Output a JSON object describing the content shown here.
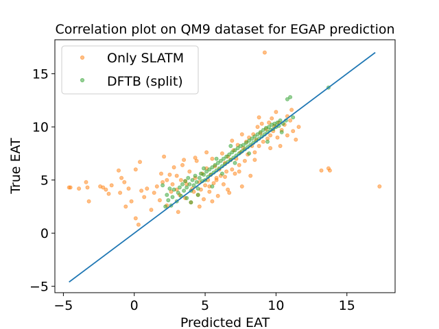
{
  "chart_data": {
    "type": "scatter",
    "title": "Correlation plot on QM9 dataset for EGAP prediction",
    "xlabel": "Predicted EAT",
    "ylabel": "True EAT",
    "xlim": [
      -5.6,
      18.4
    ],
    "ylim": [
      -5.6,
      18.2
    ],
    "xticks": [
      -5,
      0,
      5,
      10,
      15
    ],
    "yticks": [
      -5,
      0,
      5,
      10,
      15
    ],
    "xtick_labels": [
      "−5",
      "0",
      "5",
      "10",
      "15"
    ],
    "ytick_labels": [
      "−5",
      "0",
      "5",
      "10",
      "15"
    ],
    "grid": false,
    "legend_position": "top-left",
    "reference_line": {
      "x": [
        -4.6,
        17.0
      ],
      "y": [
        -4.6,
        17.0
      ],
      "color": "#1f77b4"
    },
    "series": [
      {
        "name": "Only SLATM",
        "color": "#ff7f0e",
        "points": [
          [
            -4.6,
            4.3
          ],
          [
            -4.5,
            4.3
          ],
          [
            -3.9,
            4.2
          ],
          [
            -3.4,
            4.8
          ],
          [
            -3.3,
            4.3
          ],
          [
            -3.2,
            3.0
          ],
          [
            -2.4,
            4.4
          ],
          [
            -2.2,
            4.3
          ],
          [
            -2.0,
            4.1
          ],
          [
            -1.8,
            3.7
          ],
          [
            -1.6,
            4.5
          ],
          [
            -1.1,
            5.9
          ],
          [
            -1.0,
            3.8
          ],
          [
            -0.7,
            4.8
          ],
          [
            -0.6,
            2.5
          ],
          [
            -0.4,
            4.2
          ],
          [
            -0.2,
            3.0
          ],
          [
            0.1,
            1.4
          ],
          [
            0.3,
            0.8
          ],
          [
            0.4,
            6.7
          ],
          [
            0.5,
            4.0
          ],
          [
            0.7,
            3.4
          ],
          [
            0.9,
            4.2
          ],
          [
            1.2,
            2.2
          ],
          [
            1.4,
            3.8
          ],
          [
            1.6,
            4.4
          ],
          [
            1.8,
            3.1
          ],
          [
            2.0,
            4.8
          ],
          [
            2.1,
            7.2
          ],
          [
            2.3,
            2.6
          ],
          [
            2.5,
            5.5
          ],
          [
            2.6,
            3.9
          ],
          [
            2.8,
            6.2
          ],
          [
            3.0,
            4.1
          ],
          [
            3.1,
            2.0
          ],
          [
            3.3,
            5.0
          ],
          [
            3.4,
            6.4
          ],
          [
            3.6,
            3.3
          ],
          [
            3.7,
            4.6
          ],
          [
            3.9,
            5.8
          ],
          [
            4.0,
            2.9
          ],
          [
            4.1,
            4.2
          ],
          [
            4.3,
            5.2
          ],
          [
            4.4,
            6.8
          ],
          [
            4.5,
            3.6
          ],
          [
            4.6,
            4.8
          ],
          [
            4.8,
            5.6
          ],
          [
            4.9,
            3.2
          ],
          [
            5.0,
            4.5
          ],
          [
            5.1,
            6.1
          ],
          [
            5.2,
            5.0
          ],
          [
            5.3,
            3.9
          ],
          [
            5.4,
            5.5
          ],
          [
            5.5,
            7.0
          ],
          [
            5.6,
            4.7
          ],
          [
            5.7,
            6.3
          ],
          [
            5.8,
            5.2
          ],
          [
            5.9,
            3.5
          ],
          [
            6.0,
            6.0
          ],
          [
            6.1,
            5.4
          ],
          [
            6.2,
            7.5
          ],
          [
            6.3,
            4.6
          ],
          [
            6.4,
            6.6
          ],
          [
            6.5,
            5.8
          ],
          [
            6.6,
            7.2
          ],
          [
            6.7,
            3.8
          ],
          [
            6.8,
            6.9
          ],
          [
            6.9,
            6.0
          ],
          [
            7.0,
            7.8
          ],
          [
            7.1,
            5.6
          ],
          [
            7.2,
            7.0
          ],
          [
            7.3,
            8.3
          ],
          [
            7.4,
            6.4
          ],
          [
            7.5,
            7.6
          ],
          [
            7.6,
            4.4
          ],
          [
            7.7,
            8.0
          ],
          [
            7.8,
            6.8
          ],
          [
            7.9,
            8.6
          ],
          [
            8.0,
            7.4
          ],
          [
            8.1,
            9.0
          ],
          [
            8.2,
            5.4
          ],
          [
            8.3,
            8.2
          ],
          [
            8.4,
            9.3
          ],
          [
            8.5,
            7.6
          ],
          [
            8.6,
            8.8
          ],
          [
            8.7,
            10.0
          ],
          [
            8.8,
            8.2
          ],
          [
            8.9,
            9.4
          ],
          [
            9.0,
            10.3
          ],
          [
            9.1,
            8.6
          ],
          [
            9.2,
            17.0
          ],
          [
            9.3,
            9.8
          ],
          [
            9.4,
            8.9
          ],
          [
            9.5,
            10.4
          ],
          [
            9.6,
            9.2
          ],
          [
            9.7,
            10.8
          ],
          [
            9.8,
            9.6
          ],
          [
            9.9,
            10.1
          ],
          [
            10.0,
            11.4
          ],
          [
            10.1,
            9.0
          ],
          [
            10.2,
            10.4
          ],
          [
            10.3,
            8.2
          ],
          [
            10.4,
            9.7
          ],
          [
            10.6,
            10.2
          ],
          [
            10.8,
            9.2
          ],
          [
            11.0,
            10.6
          ],
          [
            11.2,
            9.6
          ],
          [
            11.4,
            8.8
          ],
          [
            11.6,
            10.0
          ],
          [
            13.2,
            5.9
          ],
          [
            13.7,
            6.1
          ],
          [
            13.8,
            5.9
          ],
          [
            17.3,
            4.4
          ],
          [
            3.2,
            3.6
          ],
          [
            3.6,
            4.9
          ],
          [
            4.2,
            3.9
          ],
          [
            4.7,
            4.1
          ],
          [
            5.3,
            4.4
          ],
          [
            5.8,
            5.0
          ],
          [
            6.4,
            5.3
          ],
          [
            2.7,
            4.6
          ],
          [
            3.0,
            5.4
          ],
          [
            4.6,
            2.5
          ],
          [
            5.5,
            3.0
          ],
          [
            6.6,
            4.1
          ],
          [
            7.4,
            5.8
          ],
          [
            8.5,
            6.9
          ],
          [
            9.6,
            8.0
          ],
          [
            2.3,
            5.0
          ],
          [
            1.9,
            5.6
          ],
          [
            6.9,
            8.7
          ],
          [
            7.6,
            9.3
          ],
          [
            8.8,
            10.9
          ],
          [
            5.1,
            7.6
          ],
          [
            4.3,
            7.1
          ],
          [
            3.5,
            6.9
          ],
          [
            10.8,
            11.0
          ],
          [
            11.1,
            11.6
          ],
          [
            0.1,
            6.0
          ],
          [
            -0.9,
            5.2
          ]
        ]
      },
      {
        "name": "DFTB (split)",
        "color": "#2ca02c",
        "points": [
          [
            2.2,
            2.5
          ],
          [
            2.4,
            3.1
          ],
          [
            2.6,
            2.6
          ],
          [
            2.7,
            3.4
          ],
          [
            2.8,
            4.1
          ],
          [
            3.0,
            3.0
          ],
          [
            3.1,
            3.8
          ],
          [
            3.2,
            4.3
          ],
          [
            3.3,
            3.5
          ],
          [
            3.4,
            4.6
          ],
          [
            3.5,
            4.0
          ],
          [
            3.6,
            4.9
          ],
          [
            3.7,
            4.3
          ],
          [
            3.8,
            5.2
          ],
          [
            3.9,
            4.6
          ],
          [
            4.0,
            4.0
          ],
          [
            4.1,
            5.0
          ],
          [
            4.2,
            4.5
          ],
          [
            4.3,
            5.4
          ],
          [
            4.4,
            4.8
          ],
          [
            4.5,
            4.2
          ],
          [
            4.6,
            5.2
          ],
          [
            4.7,
            5.6
          ],
          [
            4.8,
            4.9
          ],
          [
            4.9,
            5.5
          ],
          [
            5.0,
            5.0
          ],
          [
            5.1,
            5.8
          ],
          [
            5.2,
            5.3
          ],
          [
            5.3,
            6.0
          ],
          [
            5.4,
            5.5
          ],
          [
            5.5,
            6.2
          ],
          [
            5.6,
            5.7
          ],
          [
            5.7,
            6.4
          ],
          [
            5.8,
            5.9
          ],
          [
            5.9,
            6.6
          ],
          [
            6.0,
            6.1
          ],
          [
            6.1,
            6.8
          ],
          [
            6.2,
            6.3
          ],
          [
            6.3,
            7.0
          ],
          [
            6.4,
            6.5
          ],
          [
            6.5,
            7.2
          ],
          [
            6.6,
            6.7
          ],
          [
            6.7,
            7.4
          ],
          [
            6.8,
            6.9
          ],
          [
            6.9,
            7.6
          ],
          [
            7.0,
            7.1
          ],
          [
            7.1,
            7.8
          ],
          [
            7.2,
            7.3
          ],
          [
            7.3,
            8.0
          ],
          [
            7.4,
            7.5
          ],
          [
            7.5,
            8.2
          ],
          [
            7.6,
            7.7
          ],
          [
            7.7,
            8.3
          ],
          [
            7.8,
            7.9
          ],
          [
            7.9,
            8.5
          ],
          [
            8.0,
            8.1
          ],
          [
            8.1,
            8.7
          ],
          [
            8.2,
            8.3
          ],
          [
            8.3,
            8.9
          ],
          [
            8.4,
            8.5
          ],
          [
            8.5,
            9.1
          ],
          [
            8.6,
            8.7
          ],
          [
            8.7,
            9.3
          ],
          [
            8.8,
            8.9
          ],
          [
            8.9,
            9.5
          ],
          [
            9.0,
            9.1
          ],
          [
            9.1,
            9.7
          ],
          [
            9.2,
            9.3
          ],
          [
            9.3,
            9.9
          ],
          [
            9.4,
            9.5
          ],
          [
            9.5,
            10.0
          ],
          [
            9.6,
            9.7
          ],
          [
            9.7,
            10.2
          ],
          [
            9.8,
            9.8
          ],
          [
            9.9,
            10.3
          ],
          [
            10.0,
            10.0
          ],
          [
            10.1,
            10.4
          ],
          [
            10.2,
            10.1
          ],
          [
            10.3,
            10.6
          ],
          [
            10.5,
            10.3
          ],
          [
            10.7,
            10.6
          ],
          [
            10.8,
            12.6
          ],
          [
            11.0,
            12.8
          ],
          [
            11.2,
            10.9
          ],
          [
            13.7,
            13.7
          ],
          [
            4.0,
            2.9
          ],
          [
            3.7,
            3.3
          ],
          [
            2.5,
            4.2
          ],
          [
            5.5,
            4.4
          ],
          [
            4.5,
            3.6
          ],
          [
            6.2,
            5.6
          ],
          [
            7.1,
            6.6
          ],
          [
            8.1,
            7.5
          ],
          [
            6.8,
            8.2
          ],
          [
            5.8,
            7.0
          ],
          [
            4.9,
            6.1
          ],
          [
            9.4,
            8.6
          ],
          [
            10.4,
            9.5
          ],
          [
            2.3,
            3.6
          ],
          [
            2.0,
            4.5
          ]
        ]
      }
    ]
  }
}
